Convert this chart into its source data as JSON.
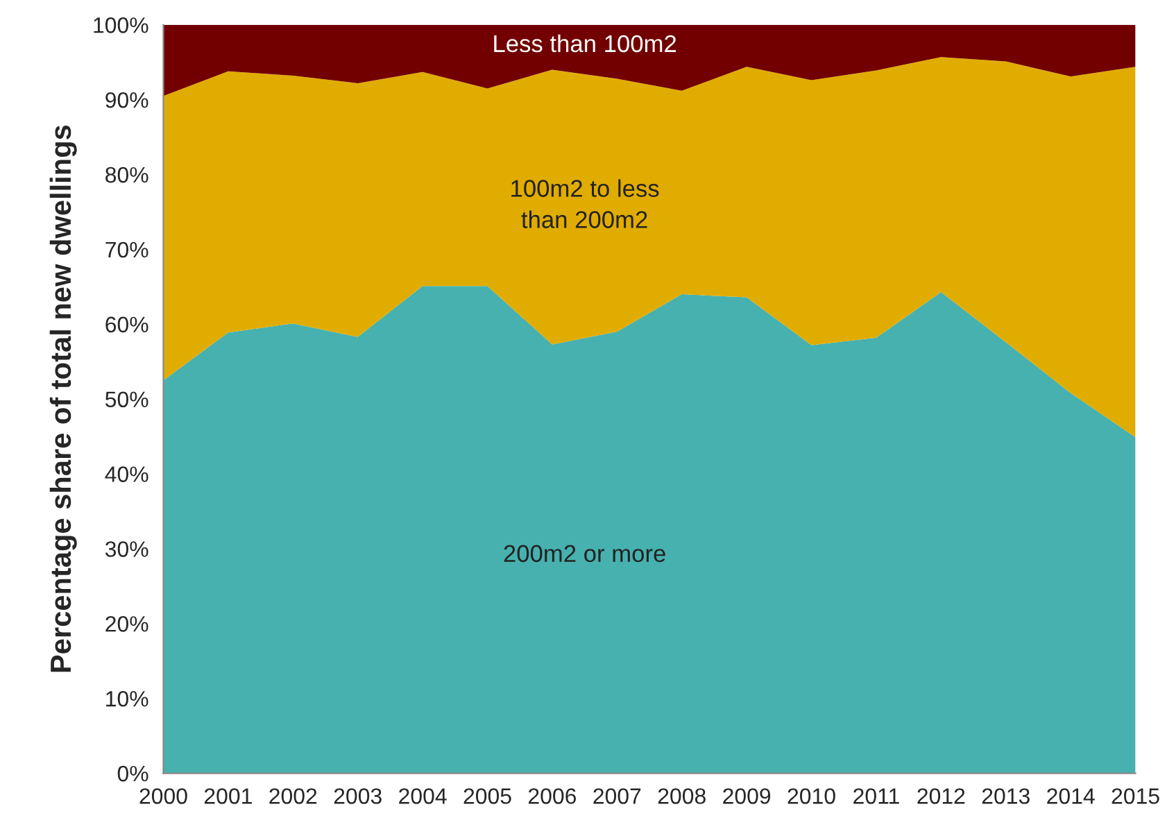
{
  "chart_data": {
    "type": "area",
    "stacked": true,
    "ylabel": "Percentage share of total new dwellings",
    "categories": [
      "2000",
      "2001",
      "2002",
      "2003",
      "2004",
      "2005",
      "2006",
      "2007",
      "2008",
      "2009",
      "2010",
      "2011",
      "2012",
      "2013",
      "2014",
      "2015"
    ],
    "series": [
      {
        "name": "200m2 or more",
        "color": "#47b1af",
        "values": [
          52.5,
          58.9,
          60.1,
          58.3,
          65.1,
          65.1,
          57.3,
          59.0,
          64.0,
          63.6,
          57.2,
          58.2,
          64.3,
          57.6,
          50.8,
          44.9
        ]
      },
      {
        "name": "100m2 to less\nthan 200m2",
        "color": "#e1ac00",
        "values": [
          38.0,
          34.9,
          33.1,
          33.9,
          28.6,
          26.4,
          36.7,
          33.8,
          27.2,
          30.8,
          35.4,
          35.7,
          31.4,
          37.5,
          42.3,
          49.5
        ]
      },
      {
        "name": "Less than 100m2",
        "color": "#720000",
        "values": [
          9.5,
          6.2,
          6.8,
          7.8,
          6.3,
          8.5,
          6.0,
          7.2,
          8.8,
          5.6,
          7.4,
          6.1,
          4.3,
          4.9,
          6.9,
          5.6
        ]
      }
    ],
    "ylim": [
      0,
      100
    ],
    "yticks": [
      {
        "value": 0,
        "label": "0%"
      },
      {
        "value": 10,
        "label": "10%"
      },
      {
        "value": 20,
        "label": "20%"
      },
      {
        "value": 30,
        "label": "30%"
      },
      {
        "value": 40,
        "label": "40%"
      },
      {
        "value": 50,
        "label": "50%"
      },
      {
        "value": 60,
        "label": "60%"
      },
      {
        "value": 70,
        "label": "70%"
      },
      {
        "value": 80,
        "label": "80%"
      },
      {
        "value": 90,
        "label": "90%"
      },
      {
        "value": 100,
        "label": "100%"
      }
    ],
    "grid": false,
    "legend": false
  }
}
